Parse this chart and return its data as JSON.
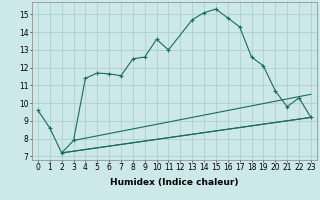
{
  "xlabel": "Humidex (Indice chaleur)",
  "background_color": "#cce8e8",
  "grid_color": "#aacccc",
  "line_color": "#1a6b5a",
  "xlim": [
    -0.5,
    23.5
  ],
  "ylim": [
    6.8,
    15.7
  ],
  "x_main": [
    0,
    1,
    2,
    3,
    4,
    5,
    6,
    7,
    8,
    9,
    10,
    11,
    13,
    14,
    15,
    16,
    17,
    18,
    19,
    20,
    21,
    22,
    23
  ],
  "y_main": [
    9.6,
    8.6,
    7.2,
    7.9,
    11.4,
    11.7,
    11.65,
    11.55,
    12.5,
    12.6,
    13.6,
    13.0,
    14.7,
    15.1,
    15.3,
    14.8,
    14.3,
    12.6,
    12.1,
    10.7,
    9.8,
    10.3,
    9.2
  ],
  "straight_lines": [
    {
      "x": [
        2,
        23
      ],
      "y": [
        7.2,
        9.2
      ]
    },
    {
      "x": [
        2,
        23
      ],
      "y": [
        7.2,
        9.2
      ]
    },
    {
      "x": [
        3,
        23
      ],
      "y": [
        7.9,
        10.5
      ]
    }
  ],
  "x_ticks": [
    0,
    1,
    2,
    3,
    4,
    5,
    6,
    7,
    8,
    9,
    10,
    11,
    12,
    13,
    14,
    15,
    16,
    17,
    18,
    19,
    20,
    21,
    22,
    23
  ],
  "y_ticks": [
    7,
    8,
    9,
    10,
    11,
    12,
    13,
    14,
    15
  ],
  "font_size_label": 6.5,
  "tick_font_size": 5.5,
  "linewidth": 0.8,
  "markersize": 3.5
}
